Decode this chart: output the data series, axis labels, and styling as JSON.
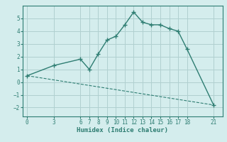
{
  "xlabel": "Humidex (Indice chaleur)",
  "background_color": "#d4eded",
  "line_color": "#2e7d72",
  "grid_color": "#b0d0d0",
  "line1_x": [
    0,
    3,
    6,
    7,
    8,
    9,
    10,
    11,
    12,
    13,
    14,
    15,
    16,
    17,
    18,
    21
  ],
  "line1_y": [
    0.5,
    1.3,
    1.8,
    1.0,
    2.2,
    3.3,
    3.6,
    4.5,
    5.5,
    4.7,
    4.5,
    4.5,
    4.2,
    4.0,
    2.6,
    -1.8
  ],
  "line2_x": [
    0,
    21
  ],
  "line2_y": [
    0.5,
    -1.8
  ],
  "xlim": [
    -0.5,
    22
  ],
  "ylim": [
    -2.7,
    6.0
  ],
  "xticks": [
    0,
    3,
    6,
    7,
    8,
    9,
    10,
    11,
    12,
    13,
    14,
    15,
    16,
    17,
    18,
    21
  ],
  "yticks": [
    -2,
    -1,
    0,
    1,
    2,
    3,
    4,
    5
  ],
  "tick_fontsize": 5.5,
  "xlabel_fontsize": 6.5
}
